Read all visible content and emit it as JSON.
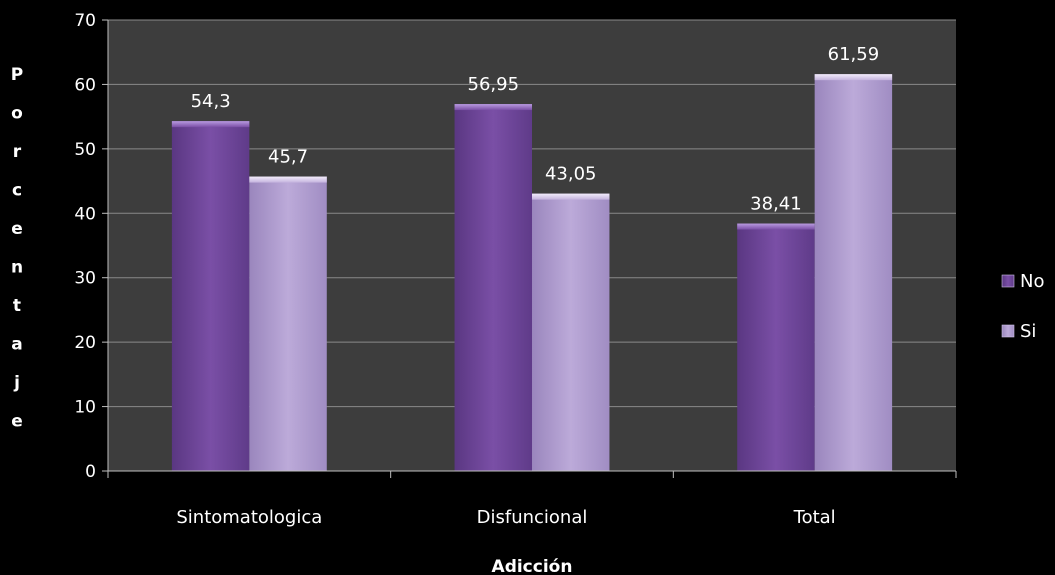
{
  "chart_data": {
    "type": "bar",
    "title": "",
    "xlabel": "Adicción",
    "ylabel": "Porcentaje",
    "categories": [
      "Sintomatologica",
      "Disfuncional",
      "Total"
    ],
    "series": [
      {
        "name": "No",
        "values": [
          54.3,
          56.95,
          38.41
        ],
        "labels": [
          "54,3",
          "56,95",
          "38,41"
        ],
        "color": "#7a4fa6"
      },
      {
        "name": "Si",
        "values": [
          45.7,
          43.05,
          61.59
        ],
        "labels": [
          "45,7",
          "43,05",
          "61,59"
        ],
        "color": "#b9a6d6"
      }
    ],
    "ylim": [
      0,
      70
    ],
    "yticks": [
      0,
      10,
      20,
      30,
      40,
      50,
      60,
      70
    ],
    "grid": true,
    "legend_position": "right",
    "background": "#3d3d3d"
  }
}
